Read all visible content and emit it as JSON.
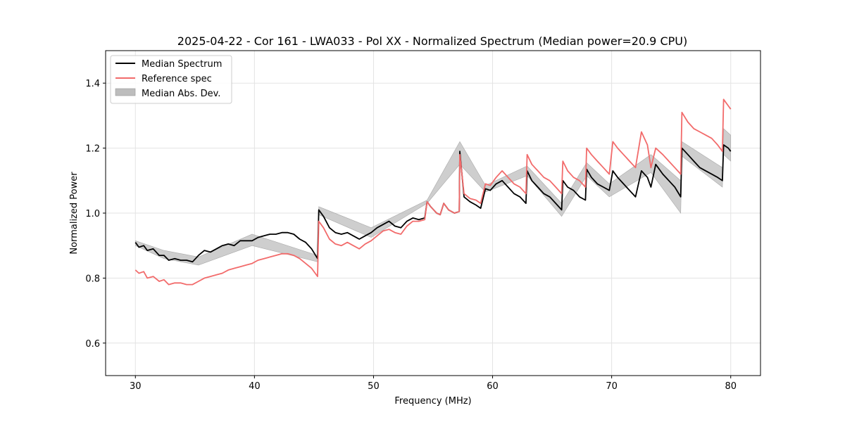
{
  "chart_data": {
    "type": "line",
    "title": "2025-04-22 - Cor 161 - LWA033 - Pol XX - Normalized Spectrum (Median power=20.9 CPU)",
    "xlabel": "Frequency (MHz)",
    "ylabel": "Normalized Power",
    "xlim": [
      27.5,
      82.5
    ],
    "ylim": [
      0.5,
      1.5
    ],
    "xticks": [
      30,
      40,
      50,
      60,
      70,
      80
    ],
    "yticks": [
      0.6,
      0.8,
      1.0,
      1.2,
      1.4
    ],
    "xtick_labels": [
      "30",
      "40",
      "50",
      "60",
      "70",
      "80"
    ],
    "ytick_labels": [
      "0.6",
      "0.8",
      "1.0",
      "1.2",
      "1.4"
    ],
    "grid": true,
    "legend": {
      "position": "top-left",
      "entries": [
        "Median Spectrum",
        "Reference spec",
        "Median Abs. Dev."
      ]
    },
    "colors": {
      "median": "#000000",
      "reference": "#f26b6b",
      "band": "#bdbdbd"
    },
    "series": [
      {
        "name": "Median Spectrum",
        "x": [
          30,
          30.3,
          30.7,
          31.0,
          31.5,
          32.0,
          32.4,
          32.8,
          33.3,
          33.8,
          34.3,
          34.8,
          35.3,
          35.8,
          36.3,
          36.8,
          37.3,
          37.8,
          38.3,
          38.8,
          39.3,
          39.8,
          40.3,
          40.8,
          41.3,
          41.8,
          42.3,
          42.8,
          43.3,
          43.8,
          44.3,
          44.8,
          45.3,
          45.4,
          45.8,
          46.3,
          46.8,
          47.3,
          47.8,
          48.3,
          48.8,
          49.3,
          49.8,
          50.3,
          50.8,
          51.3,
          51.8,
          52.3,
          52.8,
          53.3,
          53.8,
          54.3,
          54.5,
          54.8,
          55.3,
          55.6,
          55.9,
          56.3,
          56.8,
          57.2,
          57.25,
          57.6,
          58.1,
          58.6,
          59.0,
          59.4,
          59.8,
          60.3,
          60.8,
          61.3,
          61.8,
          62.3,
          62.8,
          62.9,
          63.3,
          63.8,
          64.3,
          64.8,
          65.3,
          65.8,
          65.9,
          66.3,
          66.8,
          67.3,
          67.8,
          67.9,
          68.3,
          68.8,
          69.3,
          69.8,
          70.1,
          70.5,
          71.0,
          71.5,
          72.0,
          72.5,
          73.0,
          73.3,
          73.7,
          74.3,
          74.8,
          75.3,
          75.8,
          75.9,
          76.4,
          76.9,
          77.4,
          77.9,
          78.4,
          78.9,
          79.3,
          79.4,
          79.8,
          80.0
        ],
        "values": [
          0.91,
          0.895,
          0.9,
          0.885,
          0.89,
          0.87,
          0.87,
          0.855,
          0.86,
          0.855,
          0.855,
          0.85,
          0.87,
          0.885,
          0.88,
          0.89,
          0.9,
          0.905,
          0.9,
          0.915,
          0.915,
          0.915,
          0.925,
          0.93,
          0.935,
          0.935,
          0.94,
          0.94,
          0.935,
          0.92,
          0.91,
          0.89,
          0.86,
          1.01,
          0.99,
          0.955,
          0.94,
          0.935,
          0.94,
          0.93,
          0.92,
          0.93,
          0.94,
          0.955,
          0.965,
          0.975,
          0.96,
          0.955,
          0.975,
          0.985,
          0.98,
          0.985,
          1.035,
          1.02,
          1.0,
          0.995,
          1.03,
          1.01,
          1.0,
          1.005,
          1.19,
          1.05,
          1.035,
          1.025,
          1.015,
          1.075,
          1.07,
          1.09,
          1.1,
          1.08,
          1.06,
          1.05,
          1.03,
          1.13,
          1.1,
          1.08,
          1.06,
          1.05,
          1.03,
          1.01,
          1.1,
          1.08,
          1.07,
          1.05,
          1.04,
          1.135,
          1.11,
          1.09,
          1.08,
          1.07,
          1.13,
          1.11,
          1.09,
          1.07,
          1.05,
          1.13,
          1.11,
          1.08,
          1.15,
          1.12,
          1.1,
          1.08,
          1.05,
          1.2,
          1.18,
          1.16,
          1.14,
          1.13,
          1.12,
          1.11,
          1.1,
          1.21,
          1.2,
          1.19
        ]
      },
      {
        "name": "Reference spec",
        "x": [
          30,
          30.3,
          30.7,
          31.0,
          31.5,
          32.0,
          32.4,
          32.8,
          33.3,
          33.8,
          34.3,
          34.8,
          35.3,
          35.8,
          36.3,
          36.8,
          37.3,
          37.8,
          38.3,
          38.8,
          39.3,
          39.8,
          40.3,
          40.8,
          41.3,
          41.8,
          42.3,
          42.8,
          43.3,
          43.8,
          44.3,
          44.8,
          45.3,
          45.4,
          45.8,
          46.3,
          46.8,
          47.3,
          47.8,
          48.3,
          48.8,
          49.3,
          49.8,
          50.3,
          50.8,
          51.3,
          51.8,
          52.3,
          52.8,
          53.3,
          53.8,
          54.3,
          54.5,
          54.8,
          55.3,
          55.6,
          55.9,
          56.3,
          56.8,
          57.2,
          57.25,
          57.6,
          58.1,
          58.6,
          59.0,
          59.4,
          59.8,
          60.3,
          60.8,
          61.3,
          61.8,
          62.3,
          62.8,
          62.9,
          63.3,
          63.8,
          64.3,
          64.8,
          65.3,
          65.8,
          65.9,
          66.3,
          66.8,
          67.3,
          67.8,
          67.9,
          68.3,
          68.8,
          69.3,
          69.8,
          70.1,
          70.5,
          71.0,
          71.5,
          72.0,
          72.5,
          73.0,
          73.3,
          73.7,
          74.3,
          74.8,
          75.3,
          75.8,
          75.9,
          76.4,
          76.9,
          77.4,
          77.9,
          78.4,
          78.9,
          79.3,
          79.4,
          79.8,
          80.0
        ],
        "values": [
          0.825,
          0.815,
          0.82,
          0.8,
          0.805,
          0.79,
          0.795,
          0.78,
          0.785,
          0.785,
          0.78,
          0.78,
          0.79,
          0.8,
          0.805,
          0.81,
          0.815,
          0.825,
          0.83,
          0.835,
          0.84,
          0.845,
          0.855,
          0.86,
          0.865,
          0.87,
          0.875,
          0.875,
          0.87,
          0.86,
          0.845,
          0.83,
          0.805,
          0.975,
          0.955,
          0.92,
          0.905,
          0.9,
          0.91,
          0.9,
          0.89,
          0.905,
          0.915,
          0.93,
          0.945,
          0.95,
          0.94,
          0.935,
          0.96,
          0.975,
          0.975,
          0.98,
          1.035,
          1.02,
          1.0,
          0.995,
          1.03,
          1.01,
          1.0,
          1.005,
          1.18,
          1.06,
          1.045,
          1.04,
          1.03,
          1.09,
          1.085,
          1.11,
          1.13,
          1.11,
          1.09,
          1.08,
          1.06,
          1.18,
          1.15,
          1.13,
          1.11,
          1.1,
          1.08,
          1.06,
          1.16,
          1.13,
          1.11,
          1.1,
          1.08,
          1.2,
          1.18,
          1.16,
          1.14,
          1.12,
          1.22,
          1.2,
          1.18,
          1.16,
          1.14,
          1.25,
          1.21,
          1.14,
          1.2,
          1.18,
          1.16,
          1.14,
          1.12,
          1.31,
          1.28,
          1.26,
          1.25,
          1.24,
          1.23,
          1.21,
          1.19,
          1.35,
          1.33,
          1.32
        ]
      }
    ],
    "band": {
      "name": "Median Abs. Dev.",
      "x": [
        30,
        32.4,
        35.3,
        39.8,
        45.3,
        45.4,
        49.8,
        54.5,
        57.25,
        59.4,
        62.9,
        65.8,
        67.9,
        69.8,
        73.3,
        75.8,
        75.9,
        79.3,
        79.4,
        80.0
      ],
      "lower": [
        0.9,
        0.86,
        0.84,
        0.9,
        0.85,
        0.995,
        0.925,
        1.03,
        1.15,
        1.065,
        1.115,
        0.99,
        1.115,
        1.05,
        1.125,
        1.0,
        1.175,
        1.08,
        1.18,
        1.16
      ],
      "upper": [
        0.915,
        0.885,
        0.865,
        0.935,
        0.87,
        1.02,
        0.955,
        1.04,
        1.22,
        1.085,
        1.145,
        1.03,
        1.155,
        1.09,
        1.18,
        1.1,
        1.22,
        1.14,
        1.26,
        1.24
      ]
    }
  }
}
